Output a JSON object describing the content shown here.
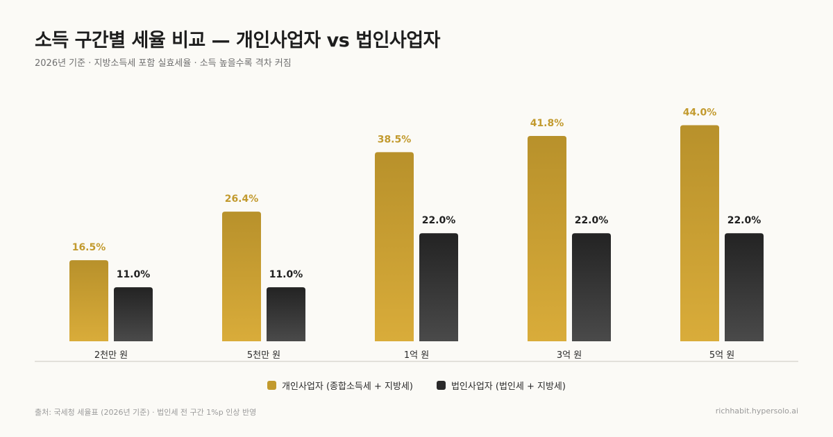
{
  "header": {
    "title": "소득 구간별 세율 비교 — 개인사업자 vs 법인사업자",
    "subtitle": "2026년 기준 · 지방소득세 포함 실효세율 · 소득 높을수록 격차 커짐"
  },
  "footer": {
    "source": "출처: 국세청 세율표 (2026년 기준) · 법인세 전 구간 1%p 인상 반영",
    "credit": "richhabit.hypersolo.ai"
  },
  "colors": {
    "series_a": "#c29a2e",
    "series_b": "#2a2a2a",
    "baseline": "#e2e0da"
  },
  "chart_data": {
    "type": "bar",
    "categories": [
      "2천만 원",
      "5천만 원",
      "1억 원",
      "3억 원",
      "5억 원"
    ],
    "series": [
      {
        "name": "개인사업자 (종합소득세 + 지방세)",
        "values": [
          16.5,
          26.4,
          38.5,
          41.8,
          44.0
        ],
        "labels": [
          "16.5%",
          "26.4%",
          "38.5%",
          "41.8%",
          "44.0%"
        ]
      },
      {
        "name": "법인사업자 (법인세 + 지방세)",
        "values": [
          11.0,
          11.0,
          22.0,
          22.0,
          22.0
        ],
        "labels": [
          "11.0%",
          "11.0%",
          "22.0%",
          "22.0%",
          "22.0%"
        ]
      }
    ],
    "ylim": [
      0,
      50
    ],
    "grid": false,
    "legend_position": "bottom-center"
  }
}
